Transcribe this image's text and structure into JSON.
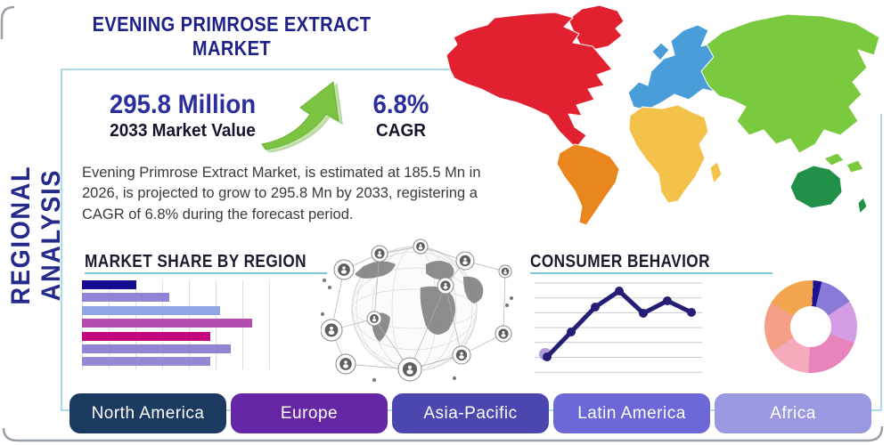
{
  "title": "EVENING PRIMROSE EXTRACT MARKET",
  "side_label": "REGIONAL ANALYSIS",
  "stats": {
    "market_value": "295.8 Million",
    "market_value_label": "2033 Market Value",
    "cagr_value": "6.8%",
    "cagr_label": "CAGR",
    "arrow_icon_color": "#7cc342"
  },
  "description": "Evening Primrose Extract Market, is estimated at 185.5 Mn in 2026, is projected to grow to 295.8 Mn by 2033, registering a CAGR of 6.8% during the forecast period.",
  "sections": {
    "market_share_heading": "MARKET SHARE BY REGION",
    "consumer_behavior_heading": "CONSUMER BEHAVIOR"
  },
  "chart_data": [
    {
      "type": "bar",
      "orientation": "horizontal",
      "title": "MARKET SHARE BY REGION",
      "values": [
        29,
        46,
        73,
        90,
        68,
        79,
        68
      ],
      "xlim": [
        0,
        100
      ],
      "grid": true,
      "colors": [
        "#150d8d",
        "#9183d6",
        "#8fa6e4",
        "#b44fb0",
        "#c4077e",
        "#9183d6",
        "#9688d2"
      ],
      "note": "seven unlabeled horizontal bars"
    },
    {
      "type": "line",
      "title": "CONSUMER BEHAVIOR",
      "x": [
        1,
        2,
        3,
        4,
        5,
        6,
        7
      ],
      "values": [
        17,
        45,
        73,
        91,
        66,
        80,
        67
      ],
      "ylim": [
        0,
        100
      ],
      "grid": true,
      "line_color": "#231f75",
      "first_point_halo_color": "#b39ddb"
    },
    {
      "type": "pie",
      "subtype": "donut",
      "values": [
        3,
        12,
        15,
        20,
        15,
        18,
        17
      ],
      "colors": [
        "#1c1390",
        "#8a7ad8",
        "#d39ce4",
        "#e983bb",
        "#f6abbd",
        "#f5a086",
        "#f2a44f"
      ],
      "start_angle_deg": 3
    }
  ],
  "map_regions": {
    "north_america": {
      "name": "North America",
      "color": "#e12130"
    },
    "south_america": {
      "name": "South America",
      "color": "#ea861e"
    },
    "europe": {
      "name": "Europe",
      "color": "#499ed9"
    },
    "africa": {
      "name": "Africa",
      "color": "#f4c14b"
    },
    "asia": {
      "name": "Asia",
      "color": "#79ca3f"
    },
    "australia": {
      "name": "Australia",
      "color": "#219149"
    }
  },
  "region_buttons": [
    {
      "label": "North America",
      "color": "#1c3a60"
    },
    {
      "label": "Europe",
      "color": "#6527a5"
    },
    {
      "label": "Asia-Pacific",
      "color": "#4b47ae"
    },
    {
      "label": "Latin America",
      "color": "#6c68d8"
    },
    {
      "label": "Africa",
      "color": "#9b98e2"
    }
  ],
  "colors": {
    "title_navy": "#1e2188",
    "card_border": "#aedcec",
    "heading_underline": "#7ec8dc",
    "frame_gray": "#9aa0a8"
  }
}
